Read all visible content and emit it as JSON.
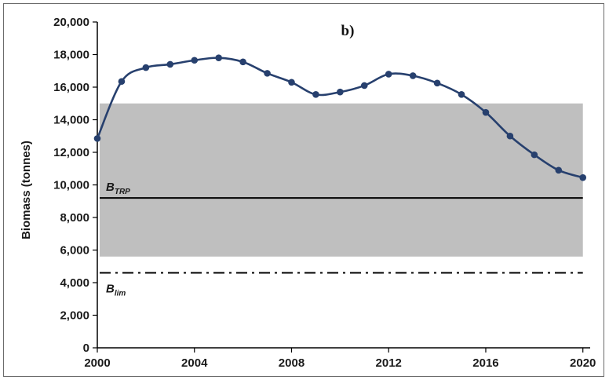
{
  "chart_data": {
    "type": "line",
    "panel_label": "b)",
    "ylabel": "Biomass (tonnes)",
    "xlabel": "",
    "x_ticks": [
      "2000",
      "2004",
      "2008",
      "2012",
      "2016",
      "2020"
    ],
    "y_ticks": [
      "0",
      "2,000",
      "4,000",
      "6,000",
      "8,000",
      "10,000",
      "12,000",
      "14,000",
      "16,000",
      "18,000",
      "20,000"
    ],
    "xlim": [
      2000,
      2020.3
    ],
    "ylim": [
      0,
      20000
    ],
    "grid": false,
    "series": [
      {
        "color": "#27406e",
        "x": [
          2000,
          2001,
          2002,
          2003,
          2004,
          2005,
          2006,
          2007,
          2008,
          2009,
          2010,
          2011,
          2012,
          2013,
          2014,
          2015,
          2016,
          2017,
          2018,
          2019,
          2020
        ],
        "values": [
          12850,
          16350,
          17200,
          17400,
          17650,
          17800,
          17550,
          16850,
          16300,
          15550,
          15700,
          16100,
          16800,
          16700,
          16250,
          15550,
          14450,
          13000,
          11850,
          10900,
          10450
        ]
      }
    ],
    "band": {
      "y_low": 5600,
      "y_high": 15000,
      "color": "#bfbfbf"
    },
    "reference_lines": [
      {
        "label_main": "B",
        "label_sub": "TRP",
        "value": 9200,
        "style": "solid"
      },
      {
        "label_main": "B",
        "label_sub": "lim",
        "value": 4600,
        "style": "dash-dot"
      }
    ]
  }
}
